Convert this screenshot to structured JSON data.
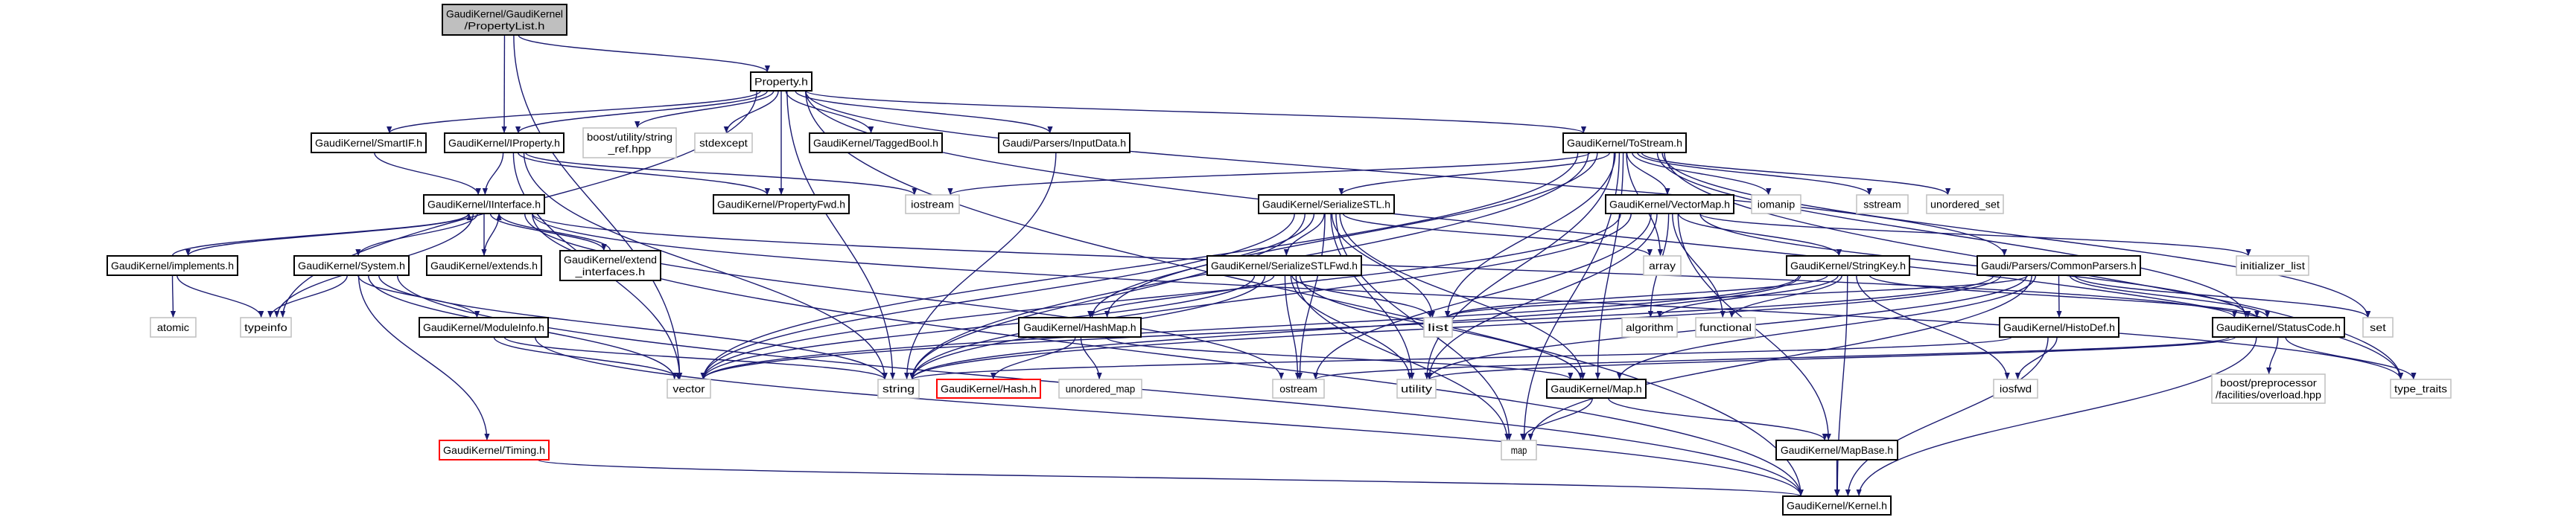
{
  "graph": {
    "colors": {
      "edge": "#191970",
      "root_fill": "#bfbfbf",
      "documented_border": "#000000",
      "external_border": "#bfbfbf",
      "undocumented_border": "#ff0000"
    },
    "nodes": [
      {
        "id": "propertylist",
        "label": [
          "GaudiKernel/GaudiKernel",
          "/PropertyList.h"
        ],
        "kind": "root"
      },
      {
        "id": "property",
        "label": [
          "Property.h"
        ],
        "kind": "doc"
      },
      {
        "id": "smartif",
        "label": [
          "GaudiKernel/SmartIF.h"
        ],
        "kind": "doc"
      },
      {
        "id": "iproperty",
        "label": [
          "GaudiKernel/IProperty.h"
        ],
        "kind": "doc"
      },
      {
        "id": "stringref",
        "label": [
          "boost/utility/string",
          "_ref.hpp"
        ],
        "kind": "ext"
      },
      {
        "id": "stdexcept",
        "label": [
          "stdexcept"
        ],
        "kind": "ext"
      },
      {
        "id": "taggedbool",
        "label": [
          "GaudiKernel/TaggedBool.h"
        ],
        "kind": "doc"
      },
      {
        "id": "inputdata",
        "label": [
          "Gaudi/Parsers/InputData.h"
        ],
        "kind": "doc"
      },
      {
        "id": "tostream",
        "label": [
          "GaudiKernel/ToStream.h"
        ],
        "kind": "doc"
      },
      {
        "id": "iinterface",
        "label": [
          "GaudiKernel/IInterface.h"
        ],
        "kind": "doc"
      },
      {
        "id": "propertyfwd",
        "label": [
          "GaudiKernel/PropertyFwd.h"
        ],
        "kind": "doc"
      },
      {
        "id": "iostream",
        "label": [
          "iostream"
        ],
        "kind": "ext"
      },
      {
        "id": "serializestl",
        "label": [
          "GaudiKernel/SerializeSTL.h"
        ],
        "kind": "doc"
      },
      {
        "id": "vectormap",
        "label": [
          "GaudiKernel/VectorMap.h"
        ],
        "kind": "doc"
      },
      {
        "id": "iomanip",
        "label": [
          "iomanip"
        ],
        "kind": "ext"
      },
      {
        "id": "sstream",
        "label": [
          "sstream"
        ],
        "kind": "ext"
      },
      {
        "id": "unordered_set",
        "label": [
          "unordered_set"
        ],
        "kind": "ext"
      },
      {
        "id": "implements",
        "label": [
          "GaudiKernel/implements.h"
        ],
        "kind": "doc"
      },
      {
        "id": "system",
        "label": [
          "GaudiKernel/System.h"
        ],
        "kind": "doc"
      },
      {
        "id": "extends",
        "label": [
          "GaudiKernel/extends.h"
        ],
        "kind": "doc"
      },
      {
        "id": "extend_interfaces",
        "label": [
          "GaudiKernel/extend",
          "_interfaces.h"
        ],
        "kind": "doc"
      },
      {
        "id": "serializestlfwd",
        "label": [
          "GaudiKernel/SerializeSTLFwd.h"
        ],
        "kind": "doc"
      },
      {
        "id": "array",
        "label": [
          "array"
        ],
        "kind": "ext"
      },
      {
        "id": "stringkey",
        "label": [
          "GaudiKernel/StringKey.h"
        ],
        "kind": "doc"
      },
      {
        "id": "commonparsers",
        "label": [
          "Gaudi/Parsers/CommonParsers.h"
        ],
        "kind": "doc"
      },
      {
        "id": "initializer_list",
        "label": [
          "initializer_list"
        ],
        "kind": "ext"
      },
      {
        "id": "atomic",
        "label": [
          "atomic"
        ],
        "kind": "ext"
      },
      {
        "id": "typeinfo",
        "label": [
          "typeinfo"
        ],
        "kind": "ext"
      },
      {
        "id": "moduleinfo",
        "label": [
          "GaudiKernel/ModuleInfo.h"
        ],
        "kind": "doc"
      },
      {
        "id": "hashmap",
        "label": [
          "GaudiKernel/HashMap.h"
        ],
        "kind": "doc"
      },
      {
        "id": "list",
        "label": [
          "list"
        ],
        "kind": "ext"
      },
      {
        "id": "algorithm",
        "label": [
          "algorithm"
        ],
        "kind": "ext"
      },
      {
        "id": "functional",
        "label": [
          "functional"
        ],
        "kind": "ext"
      },
      {
        "id": "histodef",
        "label": [
          "GaudiKernel/HistoDef.h"
        ],
        "kind": "doc"
      },
      {
        "id": "statuscode",
        "label": [
          "GaudiKernel/StatusCode.h"
        ],
        "kind": "doc"
      },
      {
        "id": "set",
        "label": [
          "set"
        ],
        "kind": "ext"
      },
      {
        "id": "vector",
        "label": [
          "vector"
        ],
        "kind": "ext"
      },
      {
        "id": "string",
        "label": [
          "string"
        ],
        "kind": "ext"
      },
      {
        "id": "hash",
        "label": [
          "GaudiKernel/Hash.h"
        ],
        "kind": "undoc"
      },
      {
        "id": "unordered_map",
        "label": [
          "unordered_map"
        ],
        "kind": "ext"
      },
      {
        "id": "ostream",
        "label": [
          "ostream"
        ],
        "kind": "ext"
      },
      {
        "id": "utility",
        "label": [
          "utility"
        ],
        "kind": "ext"
      },
      {
        "id": "map_h",
        "label": [
          "GaudiKernel/Map.h"
        ],
        "kind": "doc"
      },
      {
        "id": "iosfwd",
        "label": [
          "iosfwd"
        ],
        "kind": "ext"
      },
      {
        "id": "overload",
        "label": [
          "boost/preprocessor",
          "/facilities/overload.hpp"
        ],
        "kind": "ext"
      },
      {
        "id": "type_traits",
        "label": [
          "type_traits"
        ],
        "kind": "ext"
      },
      {
        "id": "timing",
        "label": [
          "GaudiKernel/Timing.h"
        ],
        "kind": "undoc"
      },
      {
        "id": "map",
        "label": [
          "map"
        ],
        "kind": "ext"
      },
      {
        "id": "mapbase",
        "label": [
          "GaudiKernel/MapBase.h"
        ],
        "kind": "doc"
      },
      {
        "id": "kernel",
        "label": [
          "GaudiKernel/Kernel.h"
        ],
        "kind": "doc"
      }
    ],
    "edges": [
      [
        "propertylist",
        "vector"
      ],
      [
        "propertylist",
        "iproperty"
      ],
      [
        "propertylist",
        "property"
      ],
      [
        "property",
        "smartif"
      ],
      [
        "property",
        "iproperty"
      ],
      [
        "property",
        "stringref"
      ],
      [
        "property",
        "stdexcept"
      ],
      [
        "property",
        "taggedbool"
      ],
      [
        "property",
        "propertyfwd"
      ],
      [
        "property",
        "inputdata"
      ],
      [
        "property",
        "tostream"
      ],
      [
        "property",
        "commonparsers"
      ],
      [
        "property",
        "string"
      ],
      [
        "property",
        "typeinfo"
      ],
      [
        "property",
        "kernel"
      ],
      [
        "property",
        "type_traits"
      ],
      [
        "smartif",
        "iinterface"
      ],
      [
        "iproperty",
        "iinterface"
      ],
      [
        "iproperty",
        "propertyfwd"
      ],
      [
        "iproperty",
        "iostream"
      ],
      [
        "iproperty",
        "string"
      ],
      [
        "iproperty",
        "vector"
      ],
      [
        "iinterface",
        "implements"
      ],
      [
        "iinterface",
        "system"
      ],
      [
        "iinterface",
        "extends"
      ],
      [
        "iinterface",
        "extend_interfaces"
      ],
      [
        "iinterface",
        "typeinfo"
      ],
      [
        "iinterface",
        "ostream"
      ],
      [
        "iinterface",
        "kernel"
      ],
      [
        "iinterface",
        "statuscode"
      ],
      [
        "iinterface",
        "type_traits"
      ],
      [
        "implements",
        "iinterface"
      ],
      [
        "implements",
        "atomic"
      ],
      [
        "implements",
        "typeinfo"
      ],
      [
        "extends",
        "iinterface"
      ],
      [
        "extend_interfaces",
        "iinterface"
      ],
      [
        "system",
        "typeinfo"
      ],
      [
        "system",
        "moduleinfo"
      ],
      [
        "system",
        "timing"
      ],
      [
        "system",
        "string"
      ],
      [
        "system",
        "vector"
      ],
      [
        "system",
        "kernel"
      ],
      [
        "moduleinfo",
        "vector"
      ],
      [
        "moduleinfo",
        "string"
      ],
      [
        "moduleinfo",
        "kernel"
      ],
      [
        "timing",
        "kernel"
      ],
      [
        "inputdata",
        "string"
      ],
      [
        "tostream",
        "iostream"
      ],
      [
        "tostream",
        "serializestl"
      ],
      [
        "tostream",
        "vectormap"
      ],
      [
        "tostream",
        "iomanip"
      ],
      [
        "tostream",
        "sstream"
      ],
      [
        "tostream",
        "unordered_set"
      ],
      [
        "tostream",
        "string"
      ],
      [
        "tostream",
        "vector"
      ],
      [
        "tostream",
        "list"
      ],
      [
        "tostream",
        "map"
      ],
      [
        "tostream",
        "set"
      ],
      [
        "tostream",
        "array"
      ],
      [
        "tostream",
        "type_traits"
      ],
      [
        "tostream",
        "hashmap"
      ],
      [
        "tostream",
        "map_h"
      ],
      [
        "tostream",
        "statuscode"
      ],
      [
        "tostream",
        "utility"
      ],
      [
        "serializestl",
        "serializestlfwd"
      ],
      [
        "serializestl",
        "hashmap"
      ],
      [
        "serializestl",
        "map_h"
      ],
      [
        "serializestl",
        "array"
      ],
      [
        "serializestl",
        "list"
      ],
      [
        "serializestl",
        "map"
      ],
      [
        "serializestl",
        "ostream"
      ],
      [
        "serializestl",
        "string"
      ],
      [
        "serializestl",
        "utility"
      ],
      [
        "serializestl",
        "vector"
      ],
      [
        "serializestlfwd",
        "hashmap"
      ],
      [
        "serializestlfwd",
        "list"
      ],
      [
        "serializestlfwd",
        "map"
      ],
      [
        "serializestlfwd",
        "ostream"
      ],
      [
        "serializestlfwd",
        "string"
      ],
      [
        "serializestlfwd",
        "utility"
      ],
      [
        "serializestlfwd",
        "vector"
      ],
      [
        "serializestlfwd",
        "map_h"
      ],
      [
        "vectormap",
        "algorithm"
      ],
      [
        "vectormap",
        "functional"
      ],
      [
        "vectormap",
        "stringkey"
      ],
      [
        "vectormap",
        "vector"
      ],
      [
        "vectormap",
        "utility"
      ],
      [
        "vectormap",
        "ostream"
      ],
      [
        "vectormap",
        "initializer_list"
      ],
      [
        "vectormap",
        "mapbase"
      ],
      [
        "vectormap",
        "statuscode"
      ],
      [
        "vectormap",
        "string"
      ],
      [
        "stringkey",
        "string"
      ],
      [
        "stringkey",
        "functional"
      ],
      [
        "stringkey",
        "iosfwd"
      ],
      [
        "stringkey",
        "kernel"
      ],
      [
        "stringkey",
        "statuscode"
      ],
      [
        "stringkey",
        "list"
      ],
      [
        "stringkey",
        "vector"
      ],
      [
        "stringkey",
        "algorithm"
      ],
      [
        "commonparsers",
        "statuscode"
      ],
      [
        "commonparsers",
        "histodef"
      ],
      [
        "commonparsers",
        "map"
      ],
      [
        "commonparsers",
        "list"
      ],
      [
        "commonparsers",
        "set"
      ],
      [
        "commonparsers",
        "string"
      ],
      [
        "commonparsers",
        "vector"
      ],
      [
        "commonparsers",
        "map_h"
      ],
      [
        "commonparsers",
        "utility"
      ],
      [
        "histodef",
        "iosfwd"
      ],
      [
        "histodef",
        "string"
      ],
      [
        "histodef",
        "kernel"
      ],
      [
        "statuscode",
        "overload"
      ],
      [
        "statuscode",
        "type_traits"
      ],
      [
        "statuscode",
        "kernel"
      ],
      [
        "statuscode",
        "ostream"
      ],
      [
        "statuscode",
        "utility"
      ],
      [
        "hashmap",
        "hash"
      ],
      [
        "hashmap",
        "unordered_map"
      ],
      [
        "hashmap",
        "map_h"
      ],
      [
        "map_h",
        "map"
      ],
      [
        "map_h",
        "mapbase"
      ],
      [
        "mapbase",
        "kernel"
      ]
    ]
  }
}
